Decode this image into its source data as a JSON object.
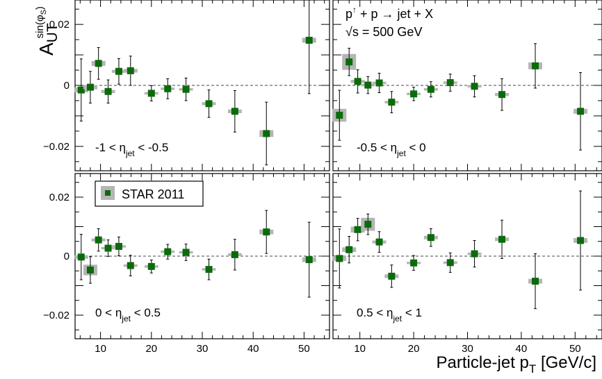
{
  "figure": {
    "ylabel_main": "A",
    "ylabel_sub": "UT",
    "ylabel_sup": "sin(φ",
    "ylabel_sup_sub": "S",
    "ylabel_sup_close": ")",
    "xlabel": "Particle-jet p",
    "xlabel_sub": "T",
    "xlabel_units": " [GeV/c]",
    "process_p": "p",
    "process_up": "↑",
    "process_rest": " + p → jet + X",
    "energy": "√s = 500 GeV",
    "legend_label": "STAR 2011",
    "colors": {
      "marker": "#0b6b0b",
      "syst_box": "#b5b5b5",
      "zero_line": "#444444"
    }
  },
  "chart_data": [
    {
      "type": "scatter",
      "panel": "top-left",
      "label": {
        "pre": "-1 < η",
        "sub": "jet",
        "post": " < -0.5"
      },
      "ylim": [
        -0.028,
        0.028
      ],
      "xlim": [
        5,
        55
      ],
      "yticks": [
        -0.02,
        0,
        0.02
      ],
      "ytick_labels": [
        "−0.02",
        "0",
        "0.02"
      ],
      "xticks": [
        10,
        20,
        30,
        40,
        50
      ],
      "xtick_labels": [],
      "x": [
        6.2,
        8.0,
        9.6,
        11.5,
        13.6,
        15.9,
        20.0,
        23.2,
        26.8,
        31.3,
        36.4,
        42.6,
        51.0
      ],
      "y": [
        -0.0015,
        -0.0006,
        0.0072,
        -0.002,
        0.0046,
        0.0048,
        -0.0026,
        -0.0011,
        -0.0013,
        -0.006,
        -0.0085,
        -0.0158,
        0.0148
      ],
      "stat_err": [
        0.0102,
        0.0052,
        0.0052,
        0.0038,
        0.0042,
        0.0048,
        0.0025,
        0.0033,
        0.0037,
        0.0045,
        0.0068,
        0.0103,
        0.0175
      ],
      "syst_err": [
        0.0008,
        0.0007,
        0.0008,
        0.0005,
        0.0005,
        0.0006,
        0.0004,
        0.0004,
        0.0004,
        0.0005,
        0.0006,
        0.0011,
        0.0008
      ]
    },
    {
      "type": "scatter",
      "panel": "top-right",
      "label": {
        "pre": "-0.5 < η",
        "sub": "jet",
        "post": " < 0"
      },
      "ylim": [
        -0.028,
        0.028
      ],
      "xlim": [
        5,
        55
      ],
      "yticks": [
        -0.02,
        0,
        0.02
      ],
      "ytick_labels": [],
      "xticks": [
        10,
        20,
        30,
        40,
        50
      ],
      "xtick_labels": [],
      "x": [
        6.2,
        8.0,
        9.6,
        11.5,
        13.6,
        15.9,
        20.0,
        23.2,
        26.8,
        31.3,
        36.4,
        42.6,
        51.0
      ],
      "y": [
        -0.0098,
        0.0077,
        0.0013,
        0.0001,
        0.0008,
        -0.0055,
        -0.0028,
        -0.0013,
        0.0009,
        -0.0003,
        -0.003,
        0.0064,
        -0.0085
      ],
      "stat_err": [
        0.0082,
        0.0045,
        0.0038,
        0.0028,
        0.0032,
        0.0035,
        0.0022,
        0.0025,
        0.0028,
        0.0035,
        0.0052,
        0.0073,
        0.0127
      ],
      "syst_err": [
        0.0021,
        0.0026,
        0.0005,
        0.0004,
        0.0004,
        0.0004,
        0.0004,
        0.0004,
        0.0004,
        0.0004,
        0.0005,
        0.0011,
        0.0008
      ]
    },
    {
      "type": "scatter",
      "panel": "bottom-left",
      "label": {
        "pre": "0 < η",
        "sub": "jet",
        "post": " < 0.5"
      },
      "ylim": [
        -0.028,
        0.028
      ],
      "xlim": [
        5,
        55
      ],
      "yticks": [
        -0.02,
        0,
        0.02
      ],
      "ytick_labels": [
        "−0.02",
        "0",
        "0.02"
      ],
      "xticks": [
        10,
        20,
        30,
        40,
        50
      ],
      "xtick_labels": [
        "10",
        "20",
        "30",
        "40",
        "50"
      ],
      "x": [
        6.2,
        8.0,
        9.6,
        11.5,
        13.6,
        15.9,
        20.0,
        23.2,
        26.8,
        31.3,
        36.4,
        42.6,
        51.0
      ],
      "y": [
        -0.0003,
        -0.0047,
        0.0055,
        0.0027,
        0.0033,
        -0.0032,
        -0.0035,
        0.0015,
        0.0013,
        -0.0045,
        0.0005,
        0.0082,
        -0.0012
      ],
      "stat_err": [
        0.0077,
        0.0045,
        0.0038,
        0.0028,
        0.0032,
        0.0035,
        0.0022,
        0.0025,
        0.0028,
        0.0035,
        0.0052,
        0.0073,
        0.0127
      ],
      "syst_err": [
        0.0006,
        0.0018,
        0.0005,
        0.0004,
        0.0004,
        0.0004,
        0.0004,
        0.0004,
        0.0004,
        0.0004,
        0.0005,
        0.0008,
        0.0008
      ]
    },
    {
      "type": "scatter",
      "panel": "bottom-right",
      "label": {
        "pre": "0.5 < η",
        "sub": "jet",
        "post": " < 1"
      },
      "ylim": [
        -0.028,
        0.028
      ],
      "xlim": [
        5,
        55
      ],
      "yticks": [
        -0.02,
        0,
        0.02
      ],
      "ytick_labels": [],
      "xticks": [
        10,
        20,
        30,
        40,
        50
      ],
      "xtick_labels": [
        "10",
        "20",
        "30",
        "40",
        "50"
      ],
      "x": [
        6.2,
        8.0,
        9.6,
        11.5,
        13.6,
        15.9,
        20.0,
        23.2,
        26.8,
        31.3,
        36.4,
        42.6,
        51.0
      ],
      "y": [
        -0.0008,
        0.0022,
        0.009,
        0.0108,
        0.0048,
        -0.0068,
        -0.0023,
        0.0063,
        -0.0022,
        0.0008,
        0.0057,
        -0.0085,
        0.0053
      ],
      "stat_err": [
        0.01,
        0.0045,
        0.0038,
        0.0035,
        0.0035,
        0.0038,
        0.0025,
        0.003,
        0.0033,
        0.0045,
        0.0065,
        0.0093,
        0.0168
      ],
      "syst_err": [
        0.0008,
        0.0008,
        0.001,
        0.0022,
        0.0005,
        0.0006,
        0.0004,
        0.0006,
        0.0004,
        0.0004,
        0.0006,
        0.0008,
        0.0008
      ]
    }
  ]
}
